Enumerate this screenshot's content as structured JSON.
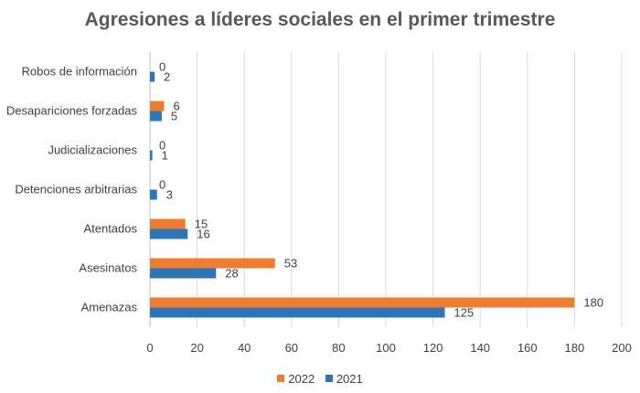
{
  "chart_data": {
    "type": "bar",
    "orientation": "horizontal",
    "title": "Agresiones a líderes sociales en el primer trimestre",
    "categories": [
      "Robos de información",
      "Desapariciones forzadas",
      "Judicializaciones",
      "Detenciones arbitrarias",
      "Atentados",
      "Asesinatos",
      "Amenazas"
    ],
    "series": [
      {
        "name": "2022",
        "color": "#ED7D31",
        "values": [
          0,
          6,
          0,
          0,
          15,
          53,
          180
        ]
      },
      {
        "name": "2021",
        "color": "#2E75B6",
        "values": [
          2,
          5,
          1,
          3,
          16,
          28,
          125
        ]
      }
    ],
    "xlim": [
      0,
      200
    ],
    "xticks": [
      0,
      20,
      40,
      60,
      80,
      100,
      120,
      140,
      160,
      180,
      200
    ],
    "grid": "vertical",
    "legend_position": "bottom"
  }
}
